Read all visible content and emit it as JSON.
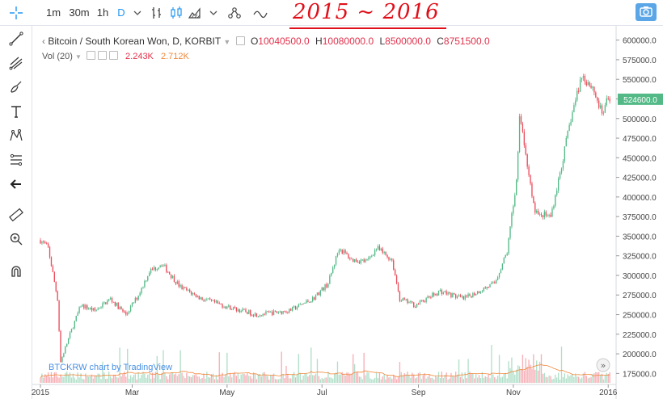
{
  "toolbar": {
    "intervals": [
      "1m",
      "30m",
      "1h",
      "D"
    ],
    "active_interval": "D",
    "icons": [
      "crosshair-icon",
      "chevron-down-icon",
      "bar-style-icon",
      "candle-style-icon",
      "area-style-icon",
      "chevron-down-icon",
      "indicators-icon",
      "compare-icon",
      "camera-icon"
    ]
  },
  "annotation_text": "2015 ~ 2016",
  "sidebar_icons": [
    "crosshair-icon",
    "trend-line-icon",
    "pitchfork-icon",
    "brush-icon",
    "text-icon",
    "pattern-icon",
    "prediction-icon",
    "back-arrow-icon",
    "ruler-icon",
    "zoom-icon",
    "magnet-icon"
  ],
  "legend": {
    "symbol": "Bitcoin / South Korean Won, D, KORBIT",
    "open_label": "O",
    "open": "10040500.0",
    "high_label": "H",
    "high": "10080000.0",
    "low_label": "L",
    "low": "8500000.0",
    "close_label": "C",
    "close": "8751500.0"
  },
  "volume_legend": {
    "label": "Vol (20)",
    "value1": "2.243K",
    "value2": "2.712K"
  },
  "watermark": "BTCKRW chart by TradingView",
  "price_badge": "524600.0",
  "colors": {
    "up": "#53b987",
    "down": "#eb4d5c",
    "vol_up": "#a9dcc3",
    "vol_down": "#f5a6ae",
    "ma": "#f0883a",
    "accent": "#2196f3"
  },
  "chart_data": {
    "type": "candlestick",
    "x_ticks": [
      "2015",
      "Mar",
      "May",
      "Jul",
      "Sep",
      "Nov",
      "2016"
    ],
    "y_ticks": [
      "600000.0",
      "575000.0",
      "550000.0",
      "525000.0",
      "500000.0",
      "475000.0",
      "450000.0",
      "425000.0",
      "400000.0",
      "375000.0",
      "350000.0",
      "325000.0",
      "300000.0",
      "275000.0",
      "250000.0",
      "225000.0",
      "200000.0",
      "175000.0"
    ],
    "ylim": [
      163000,
      612000
    ],
    "approx_close_path": [
      [
        "2015-01-01",
        345000
      ],
      [
        "2015-01-06",
        335000
      ],
      [
        "2015-01-12",
        270000
      ],
      [
        "2015-01-14",
        190000
      ],
      [
        "2015-01-20",
        225000
      ],
      [
        "2015-01-27",
        262000
      ],
      [
        "2015-02-05",
        255000
      ],
      [
        "2015-02-15",
        270000
      ],
      [
        "2015-02-25",
        250000
      ],
      [
        "2015-03-05",
        275000
      ],
      [
        "2015-03-12",
        305000
      ],
      [
        "2015-03-20",
        315000
      ],
      [
        "2015-04-01",
        285000
      ],
      [
        "2015-04-15",
        270000
      ],
      [
        "2015-05-01",
        260000
      ],
      [
        "2015-05-20",
        250000
      ],
      [
        "2015-06-10",
        255000
      ],
      [
        "2015-06-25",
        270000
      ],
      [
        "2015-07-05",
        290000
      ],
      [
        "2015-07-12",
        335000
      ],
      [
        "2015-07-20",
        320000
      ],
      [
        "2015-07-30",
        318000
      ],
      [
        "2015-08-05",
        335000
      ],
      [
        "2015-08-15",
        320000
      ],
      [
        "2015-08-20",
        270000
      ],
      [
        "2015-08-30",
        262000
      ],
      [
        "2015-09-15",
        280000
      ],
      [
        "2015-09-30",
        270000
      ],
      [
        "2015-10-10",
        280000
      ],
      [
        "2015-10-20",
        290000
      ],
      [
        "2015-10-28",
        330000
      ],
      [
        "2015-11-03",
        420000
      ],
      [
        "2015-11-05",
        505000
      ],
      [
        "2015-11-10",
        440000
      ],
      [
        "2015-11-15",
        380000
      ],
      [
        "2015-11-25",
        375000
      ],
      [
        "2015-12-01",
        430000
      ],
      [
        "2015-12-08",
        500000
      ],
      [
        "2015-12-15",
        555000
      ],
      [
        "2015-12-22",
        540000
      ],
      [
        "2015-12-28",
        505000
      ],
      [
        "2016-01-01",
        524600
      ]
    ],
    "series": [
      {
        "name": "Vol (20)",
        "type": "volume_ma"
      }
    ]
  }
}
